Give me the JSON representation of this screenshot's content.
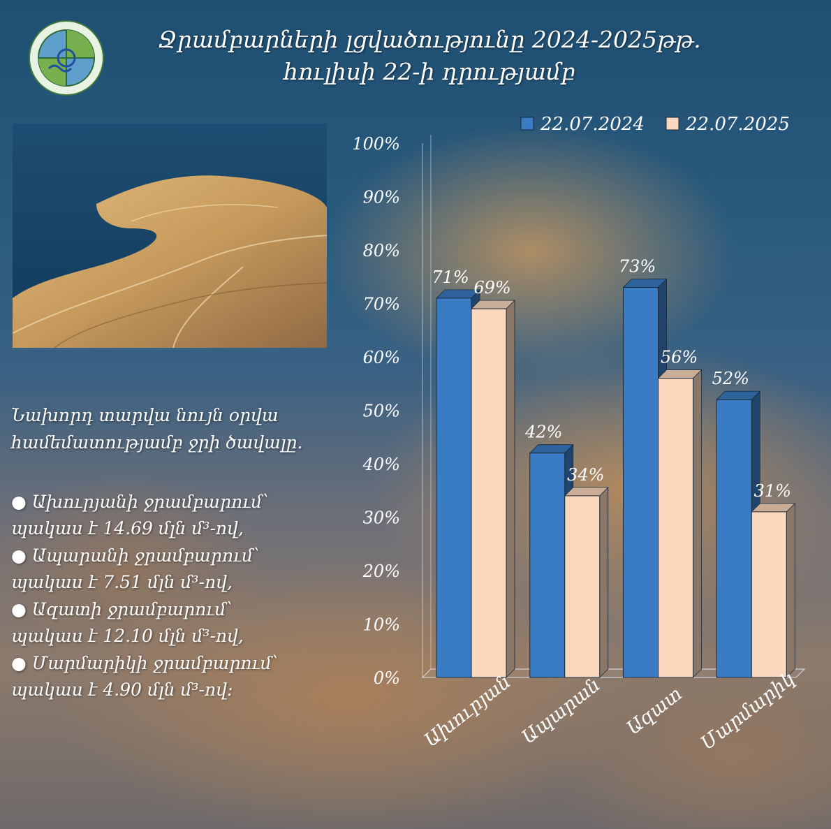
{
  "title": {
    "line1": "Ջրամբարների լցվածությունը 2024-2025թթ.",
    "line2": "հուլիսի 22-ի դրությամբ"
  },
  "description": {
    "line1": "Նախորդ տարվա նույն օրվա",
    "line2": "համեմատությամբ ջրի ծավալը."
  },
  "bullets": [
    {
      "line1": "●  Ախուրյանի ջրամբարում՝",
      "line2": "պակաս է 14.69 մլն մ³-ով,"
    },
    {
      "line1": "● Ապարանի ջրամբարում՝",
      "line2": "պակաս է 7.51 մլն մ³-ով,"
    },
    {
      "line1": "●  Ազատի ջրամբարում՝",
      "line2": "պակաս է  12.10 մլն մ³-ով,"
    },
    {
      "line1": "● Մարմարիկի ջրամբարում՝",
      "line2": "պակաս է 4.90 մլն մ³-ով:"
    }
  ],
  "chart_data": {
    "type": "bar",
    "categories": [
      "Ախուրյան",
      "Ապարան",
      "Ազատ",
      "Մարմարիկ"
    ],
    "series": [
      {
        "name": "22.07.2024",
        "values": [
          71,
          42,
          73,
          52
        ],
        "labels": [
          "71%",
          "42%",
          "73%",
          "52%"
        ],
        "color": "#3a7cc4"
      },
      {
        "name": "22.07.2025",
        "values": [
          69,
          34,
          56,
          31
        ],
        "labels": [
          "69%",
          "34%",
          "56%",
          "31%"
        ],
        "color": "#fbd8bd"
      }
    ],
    "yticks": [
      "0%",
      "10%",
      "20%",
      "30%",
      "40%",
      "50%",
      "60%",
      "70%",
      "80%",
      "90%",
      "100%"
    ],
    "ylim": [
      0,
      100
    ],
    "legend_position": "top",
    "grid": false
  },
  "colors": {
    "series_2024": "#3a7cc4",
    "series_2025": "#fbd8bd",
    "text": "#ffffff"
  }
}
